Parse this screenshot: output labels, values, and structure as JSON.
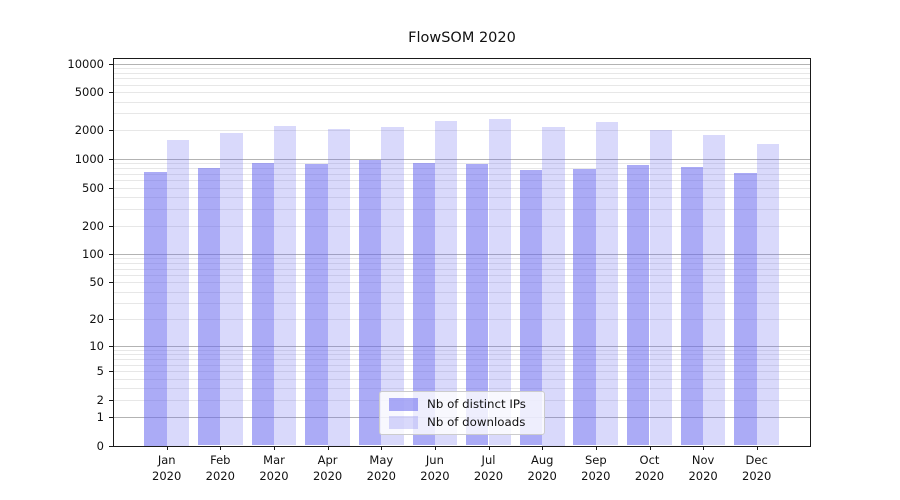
{
  "title": "FlowSOM 2020",
  "chart_data": {
    "type": "bar",
    "title": "FlowSOM 2020",
    "categories": [
      "Jan",
      "Feb",
      "Mar",
      "Apr",
      "May",
      "Jun",
      "Jul",
      "Aug",
      "Sep",
      "Oct",
      "Nov",
      "Dec"
    ],
    "category_year": "2020",
    "series": [
      {
        "name": "Nb of distinct IPs",
        "color": "rgba(102,102,238,0.55)",
        "values": [
          730,
          800,
          900,
          890,
          970,
          900,
          880,
          760,
          780,
          860,
          830,
          720
        ]
      },
      {
        "name": "Nb of downloads",
        "color": "rgba(102,102,238,0.25)",
        "values": [
          1600,
          1860,
          2230,
          2060,
          2170,
          2480,
          2600,
          2160,
          2450,
          1990,
          1800,
          1440
        ]
      }
    ],
    "xlabel": "",
    "ylabel": "",
    "yscale": "log1p",
    "ylim": [
      0,
      11000
    ],
    "ytick_labels": [
      "0",
      "1",
      "2",
      "5",
      "10",
      "20",
      "50",
      "100",
      "200",
      "500",
      "1000",
      "2000",
      "5000",
      "10000"
    ],
    "ytick_values": [
      0,
      1,
      2,
      5,
      10,
      20,
      50,
      100,
      200,
      500,
      1000,
      2000,
      5000,
      10000
    ],
    "grid": "both",
    "legend_position": "lower center",
    "colors": {
      "major_gridline": "#b3b3b3",
      "minor_gridline": "#e7e7e7",
      "spine": "#1a1a1a",
      "text": "#111111"
    }
  }
}
